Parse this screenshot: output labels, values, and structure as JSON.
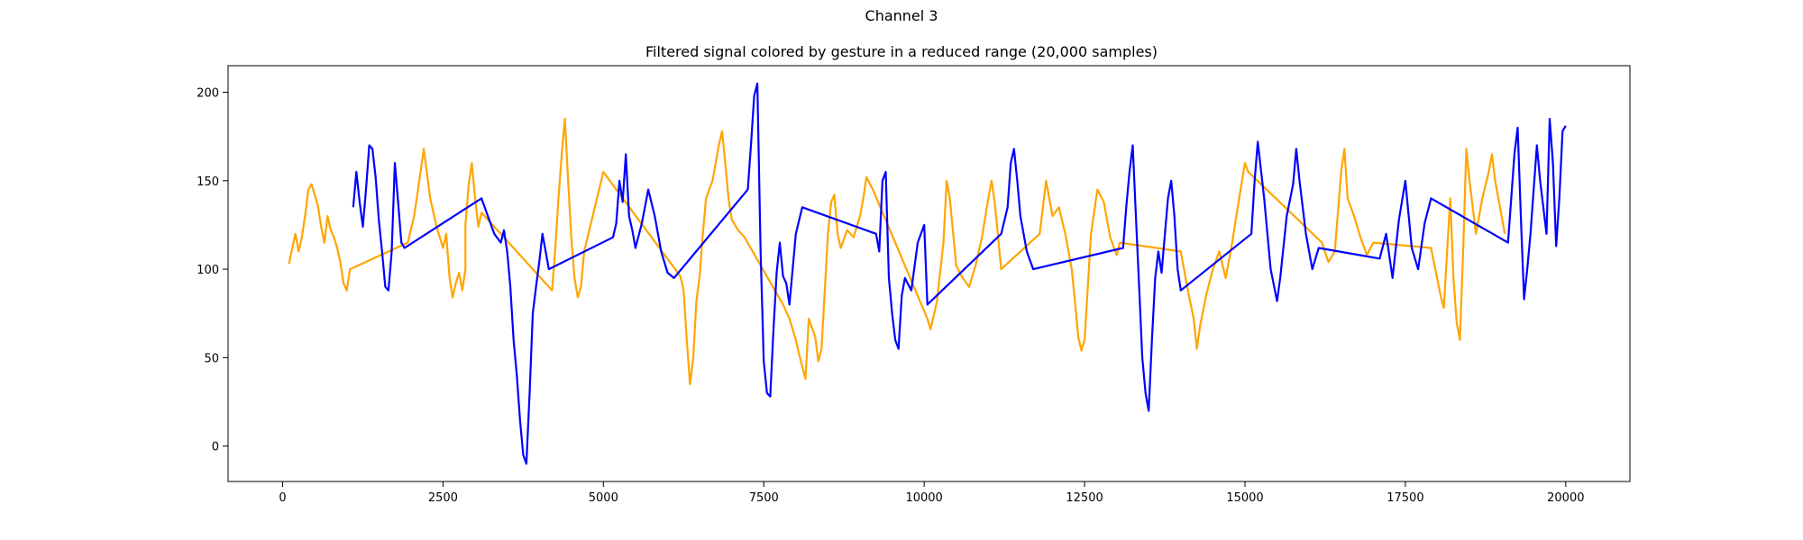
{
  "figure": {
    "suptitle": "Channel 3"
  },
  "chart_data": {
    "type": "line",
    "title": "Filtered signal colored by gesture in a reduced range (20,000 samples)",
    "xlabel": "",
    "ylabel": "",
    "xlim": [
      -850,
      21000
    ],
    "ylim": [
      -20,
      215
    ],
    "xticks": [
      0,
      2500,
      5000,
      7500,
      10000,
      12500,
      15000,
      17500,
      20000
    ],
    "yticks": [
      0,
      50,
      100,
      150,
      200
    ],
    "grid": false,
    "legend": "none",
    "colors": {
      "gesture_a": "#ffa500",
      "gesture_b": "#0000ff"
    },
    "series": [
      {
        "color": "#ffa500",
        "points": [
          [
            100,
            103
          ],
          [
            150,
            112
          ],
          [
            200,
            120
          ],
          [
            250,
            110
          ],
          [
            300,
            118
          ],
          [
            350,
            130
          ],
          [
            400,
            145
          ],
          [
            450,
            148
          ],
          [
            500,
            142
          ],
          [
            550,
            136
          ],
          [
            600,
            124
          ],
          [
            650,
            115
          ],
          [
            700,
            130
          ],
          [
            750,
            122
          ],
          [
            800,
            118
          ],
          [
            850,
            112
          ],
          [
            900,
            104
          ],
          [
            950,
            92
          ],
          [
            1000,
            88
          ],
          [
            1050,
            100
          ],
          [
            1950,
            115
          ],
          [
            2050,
            130
          ],
          [
            2150,
            155
          ],
          [
            2200,
            168
          ],
          [
            2300,
            140
          ],
          [
            2400,
            124
          ],
          [
            2500,
            112
          ],
          [
            2550,
            120
          ],
          [
            2600,
            96
          ],
          [
            2650,
            84
          ],
          [
            2700,
            92
          ],
          [
            2750,
            98
          ],
          [
            2800,
            88
          ],
          [
            2850,
            100
          ],
          [
            2850,
            125
          ],
          [
            2900,
            148
          ],
          [
            2950,
            160
          ],
          [
            3000,
            140
          ],
          [
            3050,
            124
          ],
          [
            3100,
            132
          ],
          [
            4200,
            88
          ],
          [
            4250,
            112
          ],
          [
            4300,
            140
          ],
          [
            4350,
            165
          ],
          [
            4400,
            185
          ],
          [
            4450,
            150
          ],
          [
            4500,
            118
          ],
          [
            4550,
            95
          ],
          [
            4600,
            84
          ],
          [
            4650,
            90
          ],
          [
            4700,
            110
          ],
          [
            4800,
            125
          ],
          [
            4900,
            140
          ],
          [
            5000,
            155
          ],
          [
            5100,
            150
          ],
          [
            6200,
            96
          ],
          [
            6250,
            88
          ],
          [
            6300,
            60
          ],
          [
            6350,
            35
          ],
          [
            6400,
            50
          ],
          [
            6450,
            82
          ],
          [
            6500,
            96
          ],
          [
            6550,
            120
          ],
          [
            6600,
            140
          ],
          [
            6700,
            150
          ],
          [
            6800,
            170
          ],
          [
            6850,
            178
          ],
          [
            6900,
            160
          ],
          [
            6950,
            140
          ],
          [
            7000,
            128
          ],
          [
            7100,
            122
          ],
          [
            7200,
            118
          ],
          [
            7800,
            80
          ],
          [
            7900,
            72
          ],
          [
            8000,
            60
          ],
          [
            8050,
            52
          ],
          [
            8100,
            45
          ],
          [
            8150,
            38
          ],
          [
            8200,
            72
          ],
          [
            8300,
            62
          ],
          [
            8350,
            48
          ],
          [
            8400,
            55
          ],
          [
            8450,
            88
          ],
          [
            8500,
            120
          ],
          [
            8550,
            138
          ],
          [
            8600,
            142
          ],
          [
            8650,
            120
          ],
          [
            8700,
            112
          ],
          [
            8800,
            122
          ],
          [
            8900,
            118
          ],
          [
            9000,
            130
          ],
          [
            9050,
            140
          ],
          [
            9100,
            152
          ],
          [
            9200,
            145
          ],
          [
            10050,
            72
          ],
          [
            10100,
            66
          ],
          [
            10200,
            82
          ],
          [
            10300,
            115
          ],
          [
            10350,
            150
          ],
          [
            10400,
            140
          ],
          [
            10500,
            102
          ],
          [
            10600,
            95
          ],
          [
            10700,
            90
          ],
          [
            10800,
            102
          ],
          [
            10900,
            118
          ],
          [
            11000,
            140
          ],
          [
            11050,
            150
          ],
          [
            11100,
            138
          ],
          [
            11200,
            100
          ],
          [
            11800,
            120
          ],
          [
            11900,
            150
          ],
          [
            12000,
            130
          ],
          [
            12100,
            135
          ],
          [
            12200,
            120
          ],
          [
            12300,
            100
          ],
          [
            12350,
            82
          ],
          [
            12400,
            62
          ],
          [
            12450,
            54
          ],
          [
            12500,
            60
          ],
          [
            12600,
            120
          ],
          [
            12700,
            145
          ],
          [
            12800,
            138
          ],
          [
            12900,
            118
          ],
          [
            13000,
            108
          ],
          [
            13050,
            115
          ],
          [
            14000,
            110
          ],
          [
            14100,
            90
          ],
          [
            14200,
            72
          ],
          [
            14250,
            55
          ],
          [
            14300,
            68
          ],
          [
            14400,
            86
          ],
          [
            14500,
            100
          ],
          [
            14600,
            110
          ],
          [
            14700,
            95
          ],
          [
            14800,
            115
          ],
          [
            14900,
            138
          ],
          [
            15000,
            160
          ],
          [
            15050,
            155
          ],
          [
            16200,
            115
          ],
          [
            16300,
            104
          ],
          [
            16400,
            110
          ],
          [
            16500,
            155
          ],
          [
            16550,
            168
          ],
          [
            16600,
            140
          ],
          [
            16700,
            130
          ],
          [
            16800,
            118
          ],
          [
            16900,
            108
          ],
          [
            17000,
            115
          ],
          [
            17900,
            112
          ],
          [
            18050,
            85
          ],
          [
            18100,
            78
          ],
          [
            18150,
            110
          ],
          [
            18200,
            140
          ],
          [
            18250,
            95
          ],
          [
            18300,
            70
          ],
          [
            18350,
            60
          ],
          [
            18400,
            110
          ],
          [
            18450,
            168
          ],
          [
            18500,
            150
          ],
          [
            18600,
            120
          ],
          [
            18700,
            140
          ],
          [
            18800,
            155
          ],
          [
            18850,
            165
          ],
          [
            18900,
            150
          ],
          [
            19000,
            130
          ],
          [
            19050,
            120
          ]
        ]
      },
      {
        "color": "#0000ff",
        "points": [
          [
            1100,
            135
          ],
          [
            1150,
            155
          ],
          [
            1200,
            138
          ],
          [
            1250,
            124
          ],
          [
            1300,
            145
          ],
          [
            1350,
            170
          ],
          [
            1400,
            168
          ],
          [
            1450,
            152
          ],
          [
            1500,
            128
          ],
          [
            1550,
            110
          ],
          [
            1600,
            90
          ],
          [
            1650,
            88
          ],
          [
            1700,
            110
          ],
          [
            1750,
            160
          ],
          [
            1800,
            138
          ],
          [
            1850,
            115
          ],
          [
            1900,
            112
          ],
          [
            3100,
            140
          ],
          [
            3200,
            130
          ],
          [
            3300,
            120
          ],
          [
            3400,
            115
          ],
          [
            3450,
            122
          ],
          [
            3500,
            110
          ],
          [
            3550,
            90
          ],
          [
            3600,
            60
          ],
          [
            3650,
            40
          ],
          [
            3700,
            15
          ],
          [
            3750,
            -5
          ],
          [
            3800,
            -10
          ],
          [
            3850,
            30
          ],
          [
            3900,
            75
          ],
          [
            3950,
            90
          ],
          [
            4000,
            104
          ],
          [
            4050,
            120
          ],
          [
            4100,
            110
          ],
          [
            4150,
            100
          ],
          [
            5150,
            118
          ],
          [
            5200,
            126
          ],
          [
            5250,
            150
          ],
          [
            5300,
            138
          ],
          [
            5350,
            165
          ],
          [
            5400,
            130
          ],
          [
            5450,
            122
          ],
          [
            5500,
            112
          ],
          [
            5600,
            126
          ],
          [
            5700,
            145
          ],
          [
            5800,
            130
          ],
          [
            5900,
            110
          ],
          [
            6000,
            98
          ],
          [
            6100,
            95
          ],
          [
            7250,
            145
          ],
          [
            7300,
            170
          ],
          [
            7350,
            198
          ],
          [
            7400,
            205
          ],
          [
            7450,
            110
          ],
          [
            7500,
            48
          ],
          [
            7550,
            30
          ],
          [
            7600,
            28
          ],
          [
            7650,
            65
          ],
          [
            7700,
            98
          ],
          [
            7750,
            115
          ],
          [
            7800,
            96
          ],
          [
            7850,
            92
          ],
          [
            7900,
            80
          ],
          [
            8000,
            120
          ],
          [
            8100,
            135
          ],
          [
            9250,
            120
          ],
          [
            9300,
            110
          ],
          [
            9350,
            150
          ],
          [
            9400,
            155
          ],
          [
            9450,
            95
          ],
          [
            9500,
            75
          ],
          [
            9550,
            60
          ],
          [
            9600,
            55
          ],
          [
            9650,
            85
          ],
          [
            9700,
            95
          ],
          [
            9800,
            88
          ],
          [
            9900,
            115
          ],
          [
            10000,
            125
          ],
          [
            10050,
            80
          ],
          [
            11200,
            120
          ],
          [
            11300,
            135
          ],
          [
            11350,
            160
          ],
          [
            11400,
            168
          ],
          [
            11450,
            150
          ],
          [
            11500,
            130
          ],
          [
            11600,
            110
          ],
          [
            11700,
            100
          ],
          [
            13100,
            112
          ],
          [
            13150,
            135
          ],
          [
            13200,
            155
          ],
          [
            13250,
            170
          ],
          [
            13300,
            130
          ],
          [
            13350,
            90
          ],
          [
            13400,
            50
          ],
          [
            13450,
            30
          ],
          [
            13500,
            20
          ],
          [
            13550,
            60
          ],
          [
            13600,
            95
          ],
          [
            13650,
            110
          ],
          [
            13700,
            98
          ],
          [
            13800,
            140
          ],
          [
            13850,
            150
          ],
          [
            13900,
            130
          ],
          [
            13950,
            100
          ],
          [
            14000,
            88
          ],
          [
            15100,
            120
          ],
          [
            15150,
            150
          ],
          [
            15200,
            172
          ],
          [
            15300,
            140
          ],
          [
            15400,
            100
          ],
          [
            15500,
            82
          ],
          [
            15550,
            95
          ],
          [
            15650,
            130
          ],
          [
            15750,
            148
          ],
          [
            15800,
            168
          ],
          [
            15850,
            150
          ],
          [
            15950,
            120
          ],
          [
            16050,
            100
          ],
          [
            16150,
            112
          ],
          [
            17100,
            106
          ],
          [
            17200,
            120
          ],
          [
            17300,
            95
          ],
          [
            17400,
            128
          ],
          [
            17500,
            150
          ],
          [
            17600,
            112
          ],
          [
            17700,
            100
          ],
          [
            17800,
            126
          ],
          [
            17900,
            140
          ],
          [
            19100,
            115
          ],
          [
            19200,
            165
          ],
          [
            19250,
            180
          ],
          [
            19300,
            130
          ],
          [
            19350,
            83
          ],
          [
            19400,
            100
          ],
          [
            19450,
            120
          ],
          [
            19550,
            170
          ],
          [
            19600,
            150
          ],
          [
            19700,
            120
          ],
          [
            19750,
            185
          ],
          [
            19800,
            160
          ],
          [
            19850,
            113
          ],
          [
            19900,
            140
          ],
          [
            19950,
            178
          ],
          [
            20000,
            181
          ]
        ]
      }
    ]
  }
}
